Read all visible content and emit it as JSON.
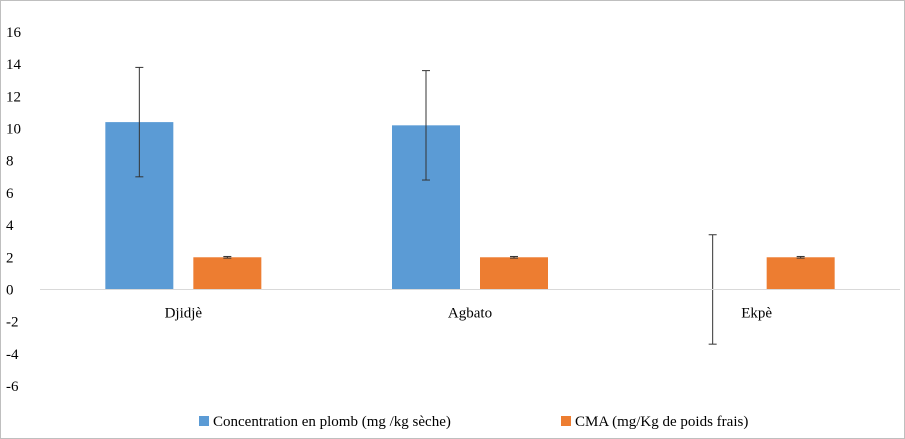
{
  "chart_data": {
    "type": "bar",
    "categories": [
      "Djidjè",
      "Agbato",
      "Ekpè"
    ],
    "ylim": [
      -6,
      16
    ],
    "yticks": [
      16,
      14,
      12,
      10,
      8,
      6,
      4,
      2,
      0,
      -2,
      -4,
      -6
    ],
    "grid": false,
    "legend_position": "bottom",
    "series": [
      {
        "name": "Concentration en plomb (mg /kg sèche)",
        "color": "#5b9bd5",
        "values": [
          10.4,
          10.2,
          0
        ],
        "errors": [
          3.4,
          3.4,
          3.4
        ]
      },
      {
        "name": "CMA (mg/Kg de poids frais)",
        "color": "#ed7d31",
        "values": [
          2,
          2,
          2
        ],
        "errors": [
          0.05,
          0.05,
          0.05
        ]
      }
    ]
  }
}
